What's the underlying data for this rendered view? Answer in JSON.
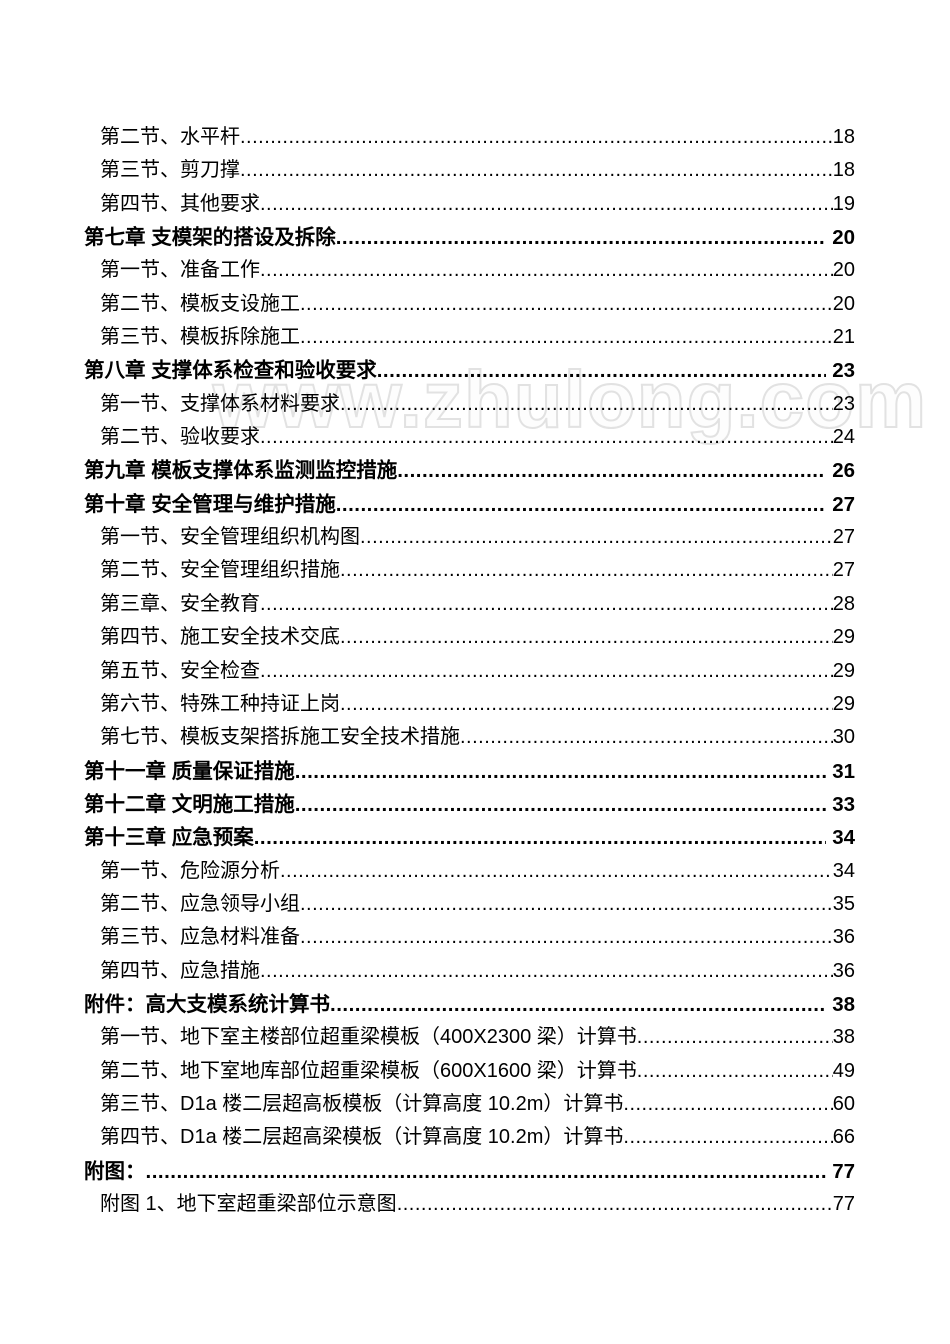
{
  "page": {
    "watermark": "www.zhulong.com"
  },
  "toc": {
    "entries": [
      {
        "level": "section",
        "label": "第二节、水平杆",
        "page": "18"
      },
      {
        "level": "section",
        "label": "第三节、剪刀撑",
        "page": "18"
      },
      {
        "level": "section",
        "label": "第四节、其他要求",
        "page": "19"
      },
      {
        "level": "chapter",
        "label": "第七章 支模架的搭设及拆除",
        "page": "20"
      },
      {
        "level": "section",
        "label": "第一节、准备工作",
        "page": "20"
      },
      {
        "level": "section",
        "label": "第二节、模板支设施工",
        "page": "20"
      },
      {
        "level": "section",
        "label": "第三节、模板拆除施工",
        "page": "21"
      },
      {
        "level": "chapter",
        "label": "第八章 支撑体系检查和验收要求",
        "page": "23"
      },
      {
        "level": "section",
        "label": "第一节、支撑体系材料要求",
        "page": "23"
      },
      {
        "level": "section",
        "label": "第二节、验收要求",
        "page": "24"
      },
      {
        "level": "chapter",
        "label": "第九章 模板支撑体系监测监控措施",
        "page": "26"
      },
      {
        "level": "chapter",
        "label": "第十章 安全管理与维护措施",
        "page": "27"
      },
      {
        "level": "section",
        "label": "第一节、安全管理组织机构图",
        "page": "27"
      },
      {
        "level": "section",
        "label": "第二节、安全管理组织措施",
        "page": "27"
      },
      {
        "level": "section",
        "label": "第三章、安全教育",
        "page": "28"
      },
      {
        "level": "section",
        "label": "第四节、施工安全技术交底",
        "page": "29"
      },
      {
        "level": "section",
        "label": "第五节、安全检查",
        "page": "29"
      },
      {
        "level": "section",
        "label": "第六节、特殊工种持证上岗",
        "page": "29"
      },
      {
        "level": "section",
        "label": "第七节、模板支架搭拆施工安全技术措施",
        "page": "30"
      },
      {
        "level": "chapter",
        "label": "第十一章 质量保证措施",
        "page": "31"
      },
      {
        "level": "chapter",
        "label": "第十二章 文明施工措施",
        "page": "33"
      },
      {
        "level": "chapter",
        "label": "第十三章 应急预案",
        "page": "34"
      },
      {
        "level": "section",
        "label": "第一节、危险源分析",
        "page": "34"
      },
      {
        "level": "section",
        "label": "第二节、应急领导小组",
        "page": "35"
      },
      {
        "level": "section",
        "label": "第三节、应急材料准备",
        "page": "36"
      },
      {
        "level": "section",
        "label": "第四节、应急措施",
        "page": "36"
      },
      {
        "level": "chapter",
        "label": "附件：高大支模系统计算书",
        "page": "38"
      },
      {
        "level": "section",
        "label": "第一节、地下室主楼部位超重梁模板（400X2300 梁）计算书",
        "page": "38"
      },
      {
        "level": "section",
        "label": "第二节、地下室地库部位超重梁模板（600X1600 梁）计算书",
        "page": "49"
      },
      {
        "level": "section",
        "label": "第三节、D1a 楼二层超高板模板（计算高度 10.2m）计算书",
        "page": "60"
      },
      {
        "level": "section",
        "label": "第四节、D1a 楼二层超高梁模板（计算高度 10.2m）计算书",
        "page": "66"
      },
      {
        "level": "chapter",
        "label": "附图：",
        "page": "77"
      },
      {
        "level": "section",
        "label": "附图 1、地下室超重梁部位示意图",
        "page": "77"
      }
    ]
  }
}
